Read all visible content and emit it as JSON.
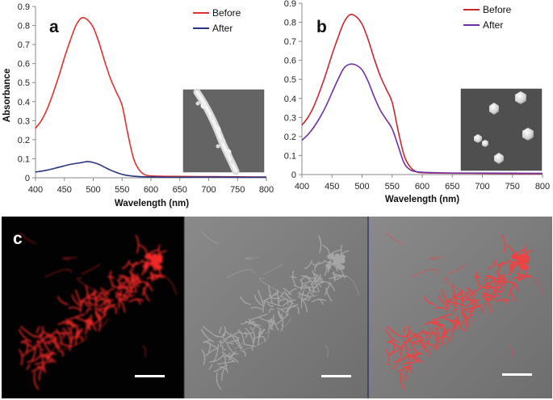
{
  "panels": [
    {
      "letter": "a"
    },
    {
      "letter": "b"
    },
    {
      "letter": "c"
    }
  ],
  "chart_data": [
    {
      "type": "line",
      "panel": "a",
      "xlabel": "Wavelength (nm)",
      "ylabel": "Absorbance",
      "xlim": [
        400,
        800
      ],
      "ylim": [
        0,
        0.9
      ],
      "xticks": [
        400,
        450,
        500,
        550,
        600,
        650,
        700,
        750,
        800
      ],
      "yticks": [
        0,
        0.1,
        0.2,
        0.3,
        0.4,
        0.5,
        0.6,
        0.7,
        0.8,
        0.9
      ],
      "grid": false,
      "legend_position": "top-right",
      "inset": "SEM micrograph of a fiber decorated with particles",
      "series": [
        {
          "name": "Before",
          "color": "#e03030",
          "x": [
            400,
            410,
            420,
            430,
            440,
            450,
            460,
            470,
            480,
            490,
            500,
            510,
            520,
            530,
            540,
            550,
            560,
            570,
            580,
            590,
            600,
            620,
            650,
            700,
            750,
            800
          ],
          "y": [
            0.26,
            0.3,
            0.36,
            0.44,
            0.53,
            0.63,
            0.72,
            0.8,
            0.84,
            0.83,
            0.79,
            0.71,
            0.61,
            0.52,
            0.45,
            0.38,
            0.23,
            0.1,
            0.04,
            0.015,
            0.01,
            0.008,
            0.007,
            0.006,
            0.005,
            0.004
          ]
        },
        {
          "name": "After",
          "color": "#2a3580",
          "x": [
            400,
            420,
            440,
            460,
            480,
            490,
            500,
            510,
            520,
            530,
            540,
            550,
            560,
            580,
            600,
            650,
            700,
            750,
            800
          ],
          "y": [
            0.03,
            0.04,
            0.055,
            0.07,
            0.08,
            0.085,
            0.08,
            0.07,
            0.055,
            0.04,
            0.028,
            0.018,
            0.012,
            0.006,
            0.004,
            0.003,
            0.004,
            0.003,
            0.003
          ]
        }
      ]
    },
    {
      "type": "line",
      "panel": "b",
      "xlabel": "Wavelength (nm)",
      "ylabel": "",
      "xlim": [
        400,
        800
      ],
      "ylim": [
        0,
        0.9
      ],
      "xticks": [
        400,
        450,
        500,
        550,
        600,
        650,
        700,
        750,
        800
      ],
      "yticks": [
        0,
        0.1,
        0.2,
        0.3,
        0.4,
        0.5,
        0.6,
        0.7,
        0.8,
        0.9
      ],
      "grid": false,
      "legend_position": "top-right",
      "inset": "SEM micrograph of isolated hexagonal particles",
      "series": [
        {
          "name": "Before",
          "color": "#c8282d",
          "x": [
            400,
            410,
            420,
            430,
            440,
            450,
            460,
            470,
            480,
            490,
            500,
            510,
            520,
            530,
            540,
            550,
            560,
            570,
            580,
            590,
            600,
            620,
            650,
            700,
            750,
            800
          ],
          "y": [
            0.26,
            0.3,
            0.36,
            0.44,
            0.53,
            0.63,
            0.72,
            0.8,
            0.84,
            0.83,
            0.79,
            0.71,
            0.61,
            0.52,
            0.45,
            0.38,
            0.23,
            0.1,
            0.04,
            0.015,
            0.01,
            0.008,
            0.007,
            0.006,
            0.005,
            0.004
          ]
        },
        {
          "name": "After",
          "color": "#7030a0",
          "x": [
            400,
            410,
            420,
            430,
            440,
            450,
            460,
            470,
            480,
            490,
            500,
            510,
            520,
            530,
            540,
            550,
            560,
            570,
            580,
            590,
            600,
            620,
            650,
            700,
            750,
            800
          ],
          "y": [
            0.18,
            0.21,
            0.25,
            0.3,
            0.36,
            0.43,
            0.5,
            0.56,
            0.58,
            0.575,
            0.55,
            0.49,
            0.41,
            0.34,
            0.29,
            0.24,
            0.15,
            0.06,
            0.025,
            0.015,
            0.012,
            0.01,
            0.008,
            0.008,
            0.007,
            0.006
          ]
        }
      ]
    }
  ],
  "micrographs": [
    {
      "kind": "fluorescence",
      "color": "#ff2a2a",
      "scale_bar": true
    },
    {
      "kind": "brightfield",
      "color": "#7f7f7f",
      "scale_bar": true
    },
    {
      "kind": "overlay",
      "color": "#ff3a3a",
      "scale_bar": true
    }
  ]
}
